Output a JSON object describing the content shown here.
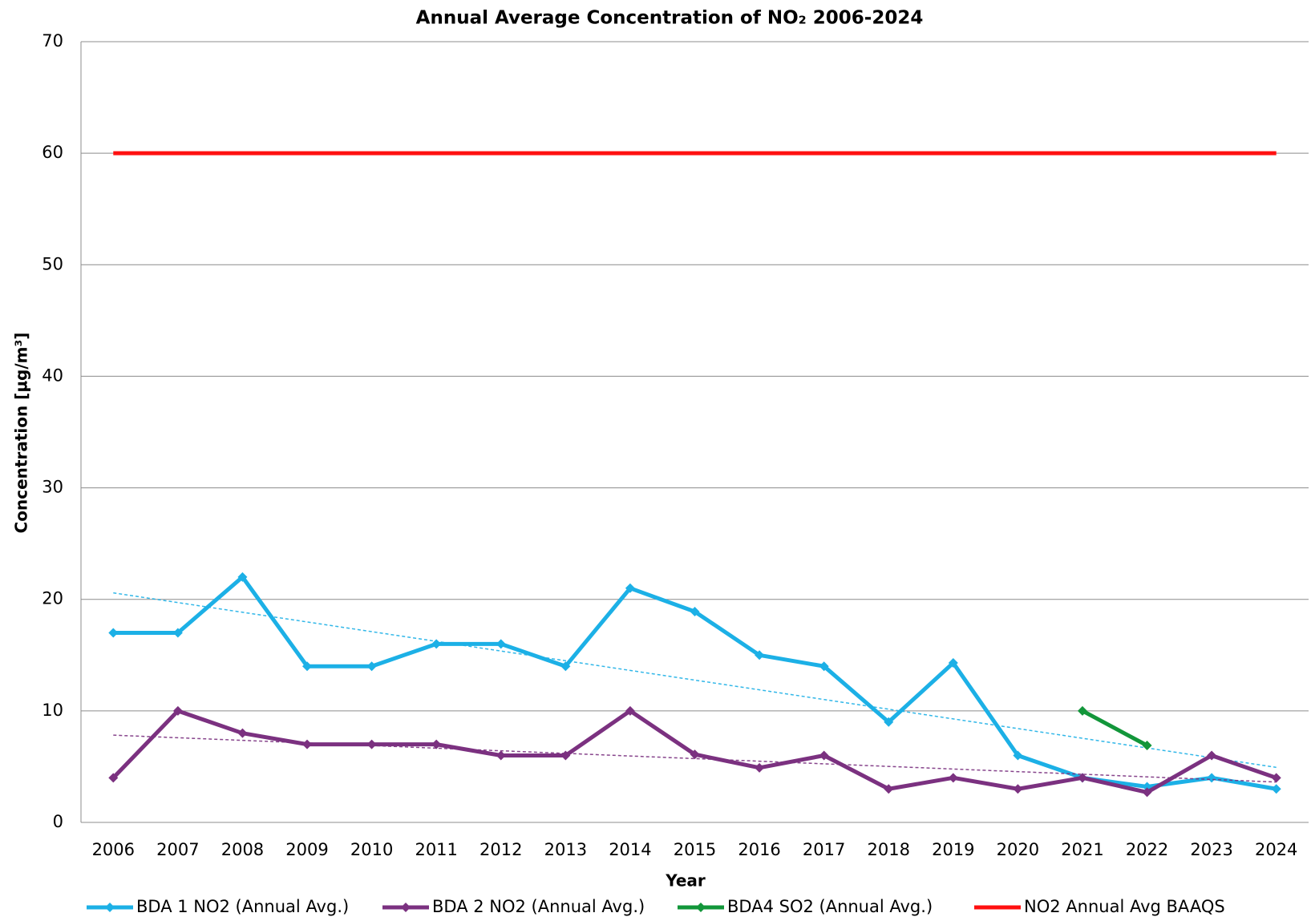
{
  "chart_data": {
    "type": "line",
    "title": "Annual Average Concentration of NO₂ 2006-2024",
    "x_label": "Year",
    "y_label": "Concentration [µg/m³]",
    "categories": [
      "2006",
      "2007",
      "2008",
      "2009",
      "2010",
      "2011",
      "2012",
      "2013",
      "2014",
      "2015",
      "2016",
      "2017",
      "2018",
      "2019",
      "2020",
      "2021",
      "2022",
      "2023",
      "2024"
    ],
    "series": [
      {
        "name": "BDA 1 NO2 (Annual Avg.)",
        "color": "#1cb0e6",
        "markers": true,
        "trendline": true,
        "values": [
          17,
          17,
          22,
          14,
          14,
          16,
          16,
          14,
          21,
          18.9,
          15,
          14,
          9,
          14.3,
          6,
          4,
          3.2,
          4,
          3
        ]
      },
      {
        "name": "BDA 2 NO2 (Annual Avg.)",
        "color": "#7b3180",
        "markers": true,
        "trendline": true,
        "values": [
          4,
          10,
          8,
          7,
          7,
          7,
          6,
          6,
          10,
          6.1,
          4.9,
          6,
          3,
          4,
          3,
          4,
          2.7,
          6,
          4
        ]
      },
      {
        "name": "BDA4 SO2 (Annual Avg.)",
        "color": "#12963a",
        "markers": true,
        "trendline": false,
        "values": [
          null,
          null,
          null,
          null,
          null,
          null,
          null,
          null,
          null,
          null,
          null,
          null,
          null,
          null,
          null,
          10,
          6.9,
          null,
          null
        ]
      },
      {
        "name": "NO2 Annual Avg BAAQS",
        "color": "#ff1010",
        "markers": false,
        "trendline": false,
        "values": [
          60,
          60,
          60,
          60,
          60,
          60,
          60,
          60,
          60,
          60,
          60,
          60,
          60,
          60,
          60,
          60,
          60,
          60,
          60
        ]
      }
    ],
    "ylim": [
      0,
      70
    ],
    "yticks": [
      0,
      10,
      20,
      30,
      40,
      50,
      60,
      70
    ],
    "grid": true,
    "legend": "bottom"
  }
}
